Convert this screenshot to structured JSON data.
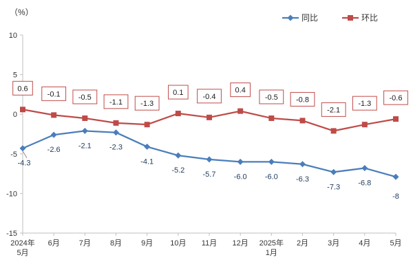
{
  "chart_data": {
    "type": "line",
    "unit_label": "（%）",
    "categories": [
      [
        "2024年",
        "5月"
      ],
      [
        "6月"
      ],
      [
        "7月"
      ],
      [
        "8月"
      ],
      [
        "9月"
      ],
      [
        "10月"
      ],
      [
        "11月"
      ],
      [
        "12月"
      ],
      [
        "2025年",
        "1月"
      ],
      [
        "2月"
      ],
      [
        "3月"
      ],
      [
        "4月"
      ],
      [
        "5月"
      ]
    ],
    "ylim": [
      -15,
      10
    ],
    "yticks": [
      10,
      5,
      0,
      -5,
      -10,
      -15
    ],
    "grid": false,
    "legend_position": "top-right",
    "series": [
      {
        "name": "同比",
        "color": "#4A7EBB",
        "marker": "diamond",
        "values": [
          -4.3,
          -2.6,
          -2.1,
          -2.3,
          -4.1,
          -5.2,
          -5.7,
          -6.0,
          -6.0,
          -6.3,
          -7.3,
          -6.8,
          -7.9
        ],
        "data_labels": [
          "-4.3",
          "-2.6",
          "-2.1",
          "-2.3",
          "-4.1",
          "-5.2",
          "-5.7",
          "-6.0",
          "-6.0",
          "-6.3",
          "-7.3",
          "-6.8",
          "-8"
        ]
      },
      {
        "name": "环比",
        "color": "#BE4B48",
        "marker": "square",
        "values": [
          0.6,
          -0.1,
          -0.5,
          -1.1,
          -1.3,
          0.1,
          -0.4,
          0.4,
          -0.5,
          -0.8,
          -2.1,
          -1.3,
          -0.6
        ],
        "data_labels": [
          "0.6",
          "-0.1",
          "-0.5",
          "-1.1",
          "-1.3",
          "0.1",
          "-0.4",
          "0.4",
          "-0.5",
          "-0.8",
          "-2.1",
          "-1.3",
          "-0.6"
        ]
      }
    ]
  }
}
